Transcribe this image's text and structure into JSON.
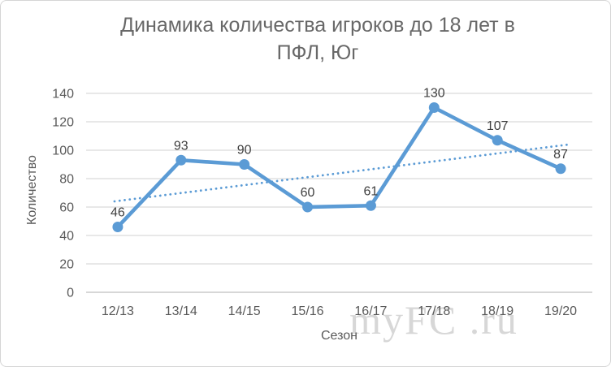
{
  "title": {
    "line1": "Динамика количества игроков до 18 лет в",
    "line2": "ПФЛ, Юг"
  },
  "watermark": "myFC .ru",
  "chart_data": {
    "type": "line",
    "title": "Динамика количества игроков до 18 лет в ПФЛ, Юг",
    "xlabel": "Сезон",
    "ylabel": "Количество",
    "categories": [
      "12/13",
      "13/14",
      "14/15",
      "15/16",
      "16/17",
      "17/18",
      "18/19",
      "19/20"
    ],
    "values": [
      46,
      93,
      90,
      60,
      61,
      130,
      107,
      87
    ],
    "data_labels": [
      46,
      93,
      90,
      60,
      61,
      130,
      107,
      87
    ],
    "yticks": [
      0,
      20,
      40,
      60,
      80,
      100,
      120,
      140
    ],
    "ylim": [
      0,
      140
    ],
    "grid": "horizontal",
    "legend": "none",
    "trendline": {
      "type": "linear",
      "style": "dotted",
      "start_value": 64,
      "end_value": 104
    },
    "colors": {
      "series_line": "#5B9BD5",
      "marker": "#5B9BD5",
      "trendline": "#5B9BD5",
      "gridline": "#D9D9D9",
      "axis_line": "#BFBFBF",
      "tick_label": "#595959",
      "data_label": "#404040",
      "title_text": "#686868",
      "watermark_text": "#D7D7D7"
    }
  }
}
